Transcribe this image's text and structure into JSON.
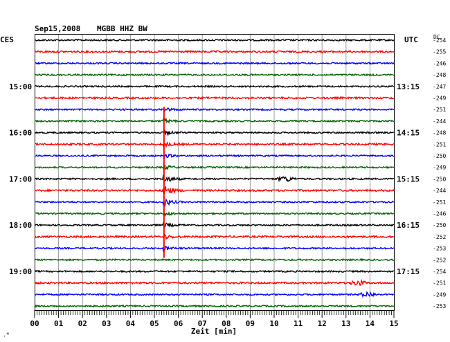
{
  "header": {
    "date": "Sep15,2008",
    "station": "MGBB HHZ BW",
    "left_tz": "CES",
    "right_tz": "UTC",
    "dc_label": "DC"
  },
  "chart_data": {
    "type": "line",
    "title": "Sep15,2008   MGBB HHZ BW",
    "xlabel": "Zeit [min]",
    "ylabel": "",
    "xlim": [
      0,
      15
    ],
    "x_tick_labels": [
      "00",
      "01",
      "02",
      "03",
      "04",
      "05",
      "06",
      "07",
      "08",
      "09",
      "10",
      "11",
      "12",
      "13",
      "14",
      "15"
    ],
    "left_time_labels": [
      "15:00",
      "16:00",
      "17:00",
      "18:00",
      "19:00"
    ],
    "right_time_labels": [
      "13:15",
      "14:15",
      "15:15",
      "16:15",
      "17:15"
    ],
    "trace_colors": [
      "#000000",
      "#ff0000",
      "#0000ff",
      "#006400"
    ],
    "dc_offsets": [
      -254,
      -255,
      -246,
      -248,
      -247,
      -249,
      -251,
      -244,
      -248,
      -251,
      -250,
      -249,
      -250,
      -244,
      -251,
      -246,
      -250,
      -252,
      -253,
      -252,
      -254,
      -251,
      -249,
      -253
    ],
    "events": [
      {
        "description": "earthquake signal",
        "trace_range": [
          6,
          18
        ],
        "peak_trace": 13,
        "minute": 5.4
      },
      {
        "description": "local noise burst",
        "trace": 12,
        "minute": 10.5
      },
      {
        "description": "local noise burst",
        "trace": 21,
        "minute": 13.5
      },
      {
        "description": "local noise burst",
        "trace": 22,
        "minute": 13.9
      }
    ]
  }
}
